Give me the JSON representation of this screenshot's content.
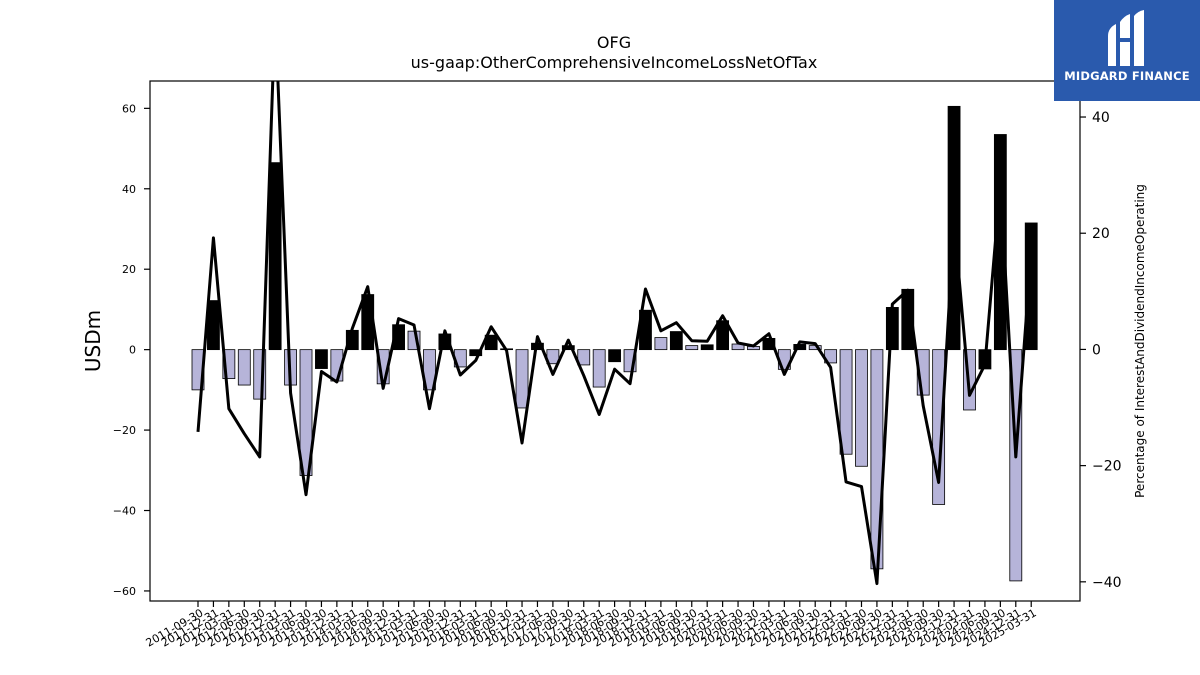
{
  "chart_data": {
    "type": "bar",
    "title": "OFG",
    "subtitle": "us-gaap:OtherComprehensiveIncomeLossNetOfTax",
    "ylabel": "USDm",
    "y2label": "Percentage of InterestAndDividendIncomeOperating",
    "ylim": [
      -62.5,
      66.8
    ],
    "y2lim": [
      -43.3,
      46.2
    ],
    "yticks": [
      -60,
      -40,
      -20,
      0,
      20,
      40,
      60
    ],
    "y2ticks": [
      -40,
      -20,
      0,
      20,
      40
    ],
    "colors": {
      "positive_change": "#000000",
      "negative_change": "#b6b4d9",
      "line": "#000000"
    },
    "categories": [
      "2011-09-30",
      "2011-12-31",
      "2012-03-31",
      "2012-06-30",
      "2012-09-30",
      "2012-12-31",
      "2013-03-31",
      "2013-06-30",
      "2013-09-30",
      "2013-12-31",
      "2014-03-31",
      "2014-06-30",
      "2014-09-30",
      "2014-12-31",
      "2015-03-31",
      "2015-06-30",
      "2015-09-30",
      "2015-12-31",
      "2016-03-31",
      "2016-06-30",
      "2016-09-30",
      "2016-12-31",
      "2017-03-31",
      "2017-06-30",
      "2017-09-30",
      "2017-12-31",
      "2018-03-31",
      "2018-06-30",
      "2018-09-30",
      "2018-12-31",
      "2019-03-31",
      "2019-06-30",
      "2019-09-30",
      "2019-12-31",
      "2020-03-31",
      "2020-06-30",
      "2020-09-30",
      "2020-12-31",
      "2021-03-31",
      "2021-06-30",
      "2021-09-30",
      "2021-12-31",
      "2022-03-31",
      "2022-06-30",
      "2022-09-30",
      "2022-12-31",
      "2023-03-31",
      "2023-06-30",
      "2023-09-30",
      "2023-12-31",
      "2024-03-31",
      "2024-06-30",
      "2024-09-30",
      "2024-12-31",
      "2025-03-31"
    ],
    "series": [
      {
        "kind": "bar",
        "values": [
          -10.0,
          12.2,
          -7.2,
          -8.8,
          -12.3,
          46.5,
          -8.8,
          -31.3,
          -4.7,
          -7.8,
          4.8,
          13.7,
          -8.5,
          6.2,
          4.6,
          -10.0,
          3.9,
          -4.3,
          -1.5,
          3.6,
          0.2,
          -14.5,
          1.6,
          -3.5,
          1.0,
          -3.8,
          -9.3,
          -3.0,
          -5.5,
          9.8,
          3.0,
          4.5,
          1.0,
          1.2,
          7.2,
          1.4,
          0.8,
          2.8,
          -4.9,
          1.3,
          1.0,
          -3.3,
          -26.0,
          -29.0,
          -54.5,
          10.5,
          15.0,
          -11.3,
          -38.5,
          60.5,
          -15.0,
          -4.8,
          53.5,
          -57.5,
          31.5
        ]
      },
      {
        "kind": "line",
        "axis": "right",
        "values": [
          -14.2,
          19.2,
          -10.2,
          -14.5,
          -18.5,
          58.0,
          -7.5,
          -25.0,
          -3.8,
          -5.6,
          3.6,
          10.8,
          -6.7,
          5.3,
          4.2,
          -10.2,
          3.2,
          -4.4,
          -1.9,
          3.9,
          -0.2,
          -16.1,
          2.2,
          -4.3,
          1.6,
          -4.5,
          -11.2,
          -3.4,
          -5.9,
          10.4,
          3.2,
          4.6,
          1.5,
          1.4,
          5.8,
          1.1,
          0.6,
          2.7,
          -4.3,
          1.3,
          1.0,
          -3.1,
          -22.8,
          -23.6,
          -40.3,
          7.8,
          10.2,
          -9.7,
          -22.9,
          22.0,
          -7.9,
          -2.6,
          28.5,
          -18.5,
          16.8
        ]
      }
    ]
  },
  "logo": {
    "text": "MIDGARD FINANCE"
  }
}
